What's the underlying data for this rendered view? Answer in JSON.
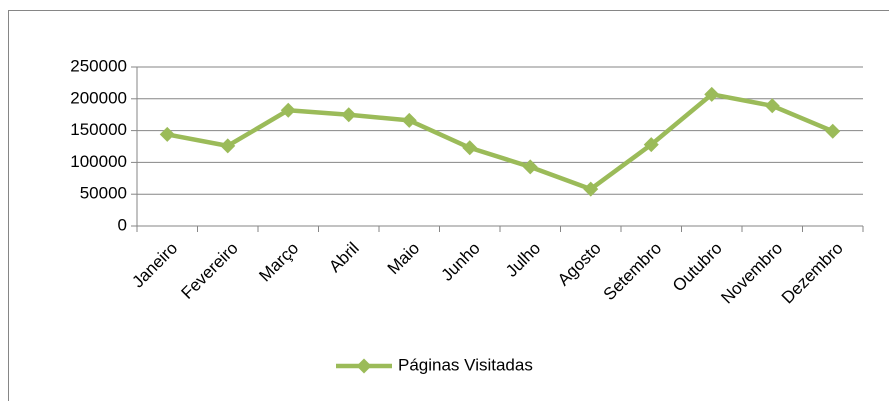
{
  "chart_data": {
    "type": "line",
    "categories": [
      "Janeiro",
      "Fevereiro",
      "Março",
      "Abril",
      "Maio",
      "Junho",
      "Julho",
      "Agosto",
      "Setembro",
      "Outubro",
      "Novembro",
      "Dezembro"
    ],
    "series": [
      {
        "name": "Páginas Visitadas",
        "color": "#9bbb59",
        "values": [
          144000,
          126000,
          182000,
          175000,
          166000,
          123000,
          93000,
          58000,
          128000,
          207000,
          189000,
          149000
        ]
      }
    ],
    "ylim": [
      0,
      250000
    ],
    "yticks": [
      0,
      50000,
      100000,
      150000,
      200000,
      250000
    ],
    "grid": true,
    "legend": "bottom"
  }
}
